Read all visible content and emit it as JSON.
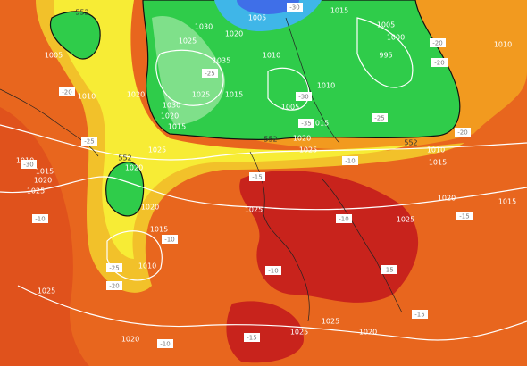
{
  "isobar_labels": [
    "1005",
    "1010",
    "1020",
    "1025",
    "1030",
    "1020",
    "1035",
    "1025",
    "1015",
    "1030",
    "1020",
    "1015",
    "1010",
    "1005",
    "1015",
    "1005",
    "1000",
    "995",
    "1010",
    "1005",
    "1015",
    "1020",
    "1025",
    "1010",
    "1015",
    "1010",
    "1020",
    "1015",
    "1025",
    "1025",
    "1020",
    "1015",
    "1010",
    "1025",
    "1020",
    "1025",
    "1025",
    "1020",
    "1010",
    "1015",
    "1020",
    "1025",
    "1025",
    "1020",
    "552",
    "552",
    "552",
    "552"
  ],
  "temperature_labels": [
    "-20",
    "-25",
    "-30",
    "-10",
    "-25",
    "-20",
    "-10",
    "-15",
    "-10",
    "-10",
    "-15",
    "-15",
    "-10",
    "-15",
    "-10",
    "-25",
    "-30",
    "-35",
    "-25",
    "-20",
    "-20",
    "-20",
    "-15",
    "-30"
  ]
}
